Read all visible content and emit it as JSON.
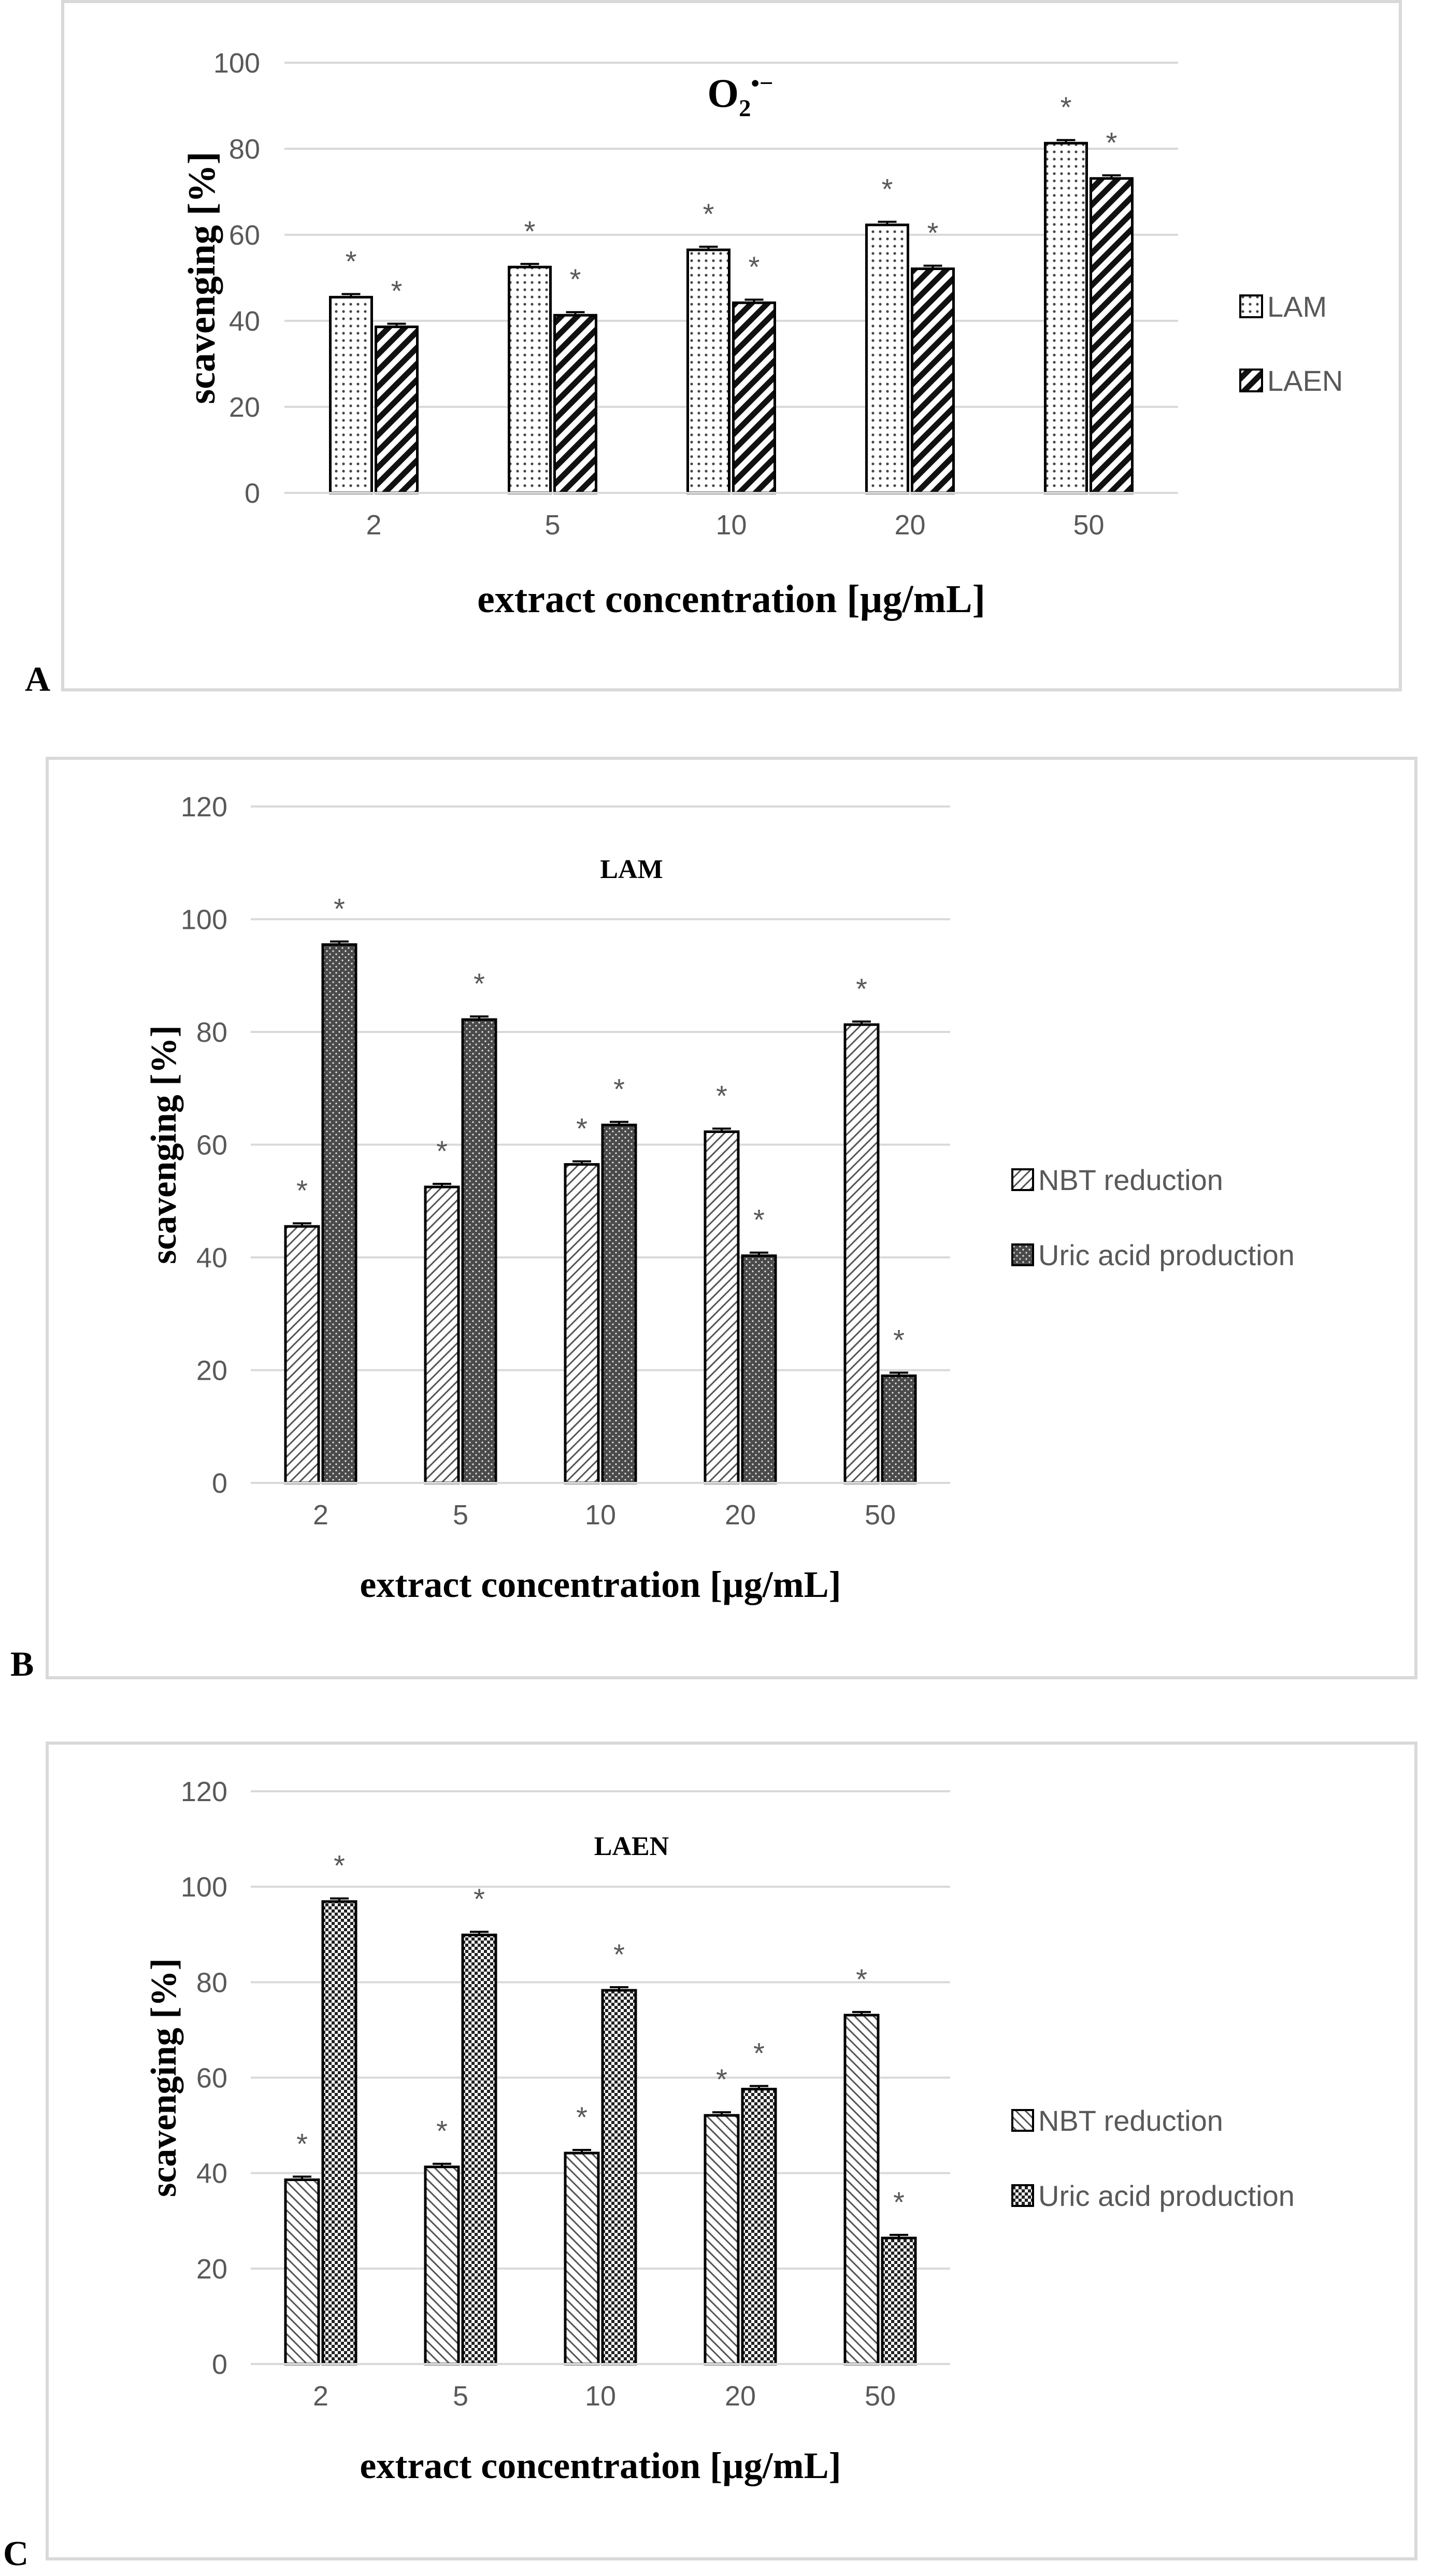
{
  "panels": [
    {
      "letter": "A"
    },
    {
      "letter": "B"
    },
    {
      "letter": "C"
    }
  ],
  "significance_marker": "*",
  "chart_data": [
    {
      "type": "bar",
      "title": "O",
      "title_subscript": "2",
      "title_superscript": "•−",
      "categories": [
        "2",
        "5",
        "10",
        "20",
        "50"
      ],
      "series": [
        {
          "name": "LAM",
          "values": [
            45.5,
            52.5,
            56.5,
            62.3,
            81.3
          ]
        },
        {
          "name": "LAEN",
          "values": [
            38.6,
            41.3,
            44.2,
            52.1,
            73.1
          ]
        }
      ],
      "xlabel": "extract concentration [µg/mL]",
      "ylabel": "scavenging [%]",
      "ylim": [
        0,
        100
      ],
      "yticks": [
        "0",
        "20",
        "40",
        "60",
        "80",
        "100"
      ],
      "grid": true,
      "legend": "right"
    },
    {
      "type": "bar",
      "title": "LAM",
      "categories": [
        "2",
        "5",
        "10",
        "20",
        "50"
      ],
      "series": [
        {
          "name": "NBT reduction",
          "values": [
            45.5,
            52.5,
            56.5,
            62.3,
            81.3
          ]
        },
        {
          "name": "Uric acid production",
          "values": [
            95.5,
            82.2,
            63.5,
            40.3,
            19.0
          ]
        }
      ],
      "xlabel": "extract concentration [µg/mL]",
      "ylabel": "scavenging [%]",
      "ylim": [
        0,
        120
      ],
      "yticks": [
        "0",
        "20",
        "40",
        "60",
        "80",
        "100",
        "120"
      ],
      "grid": true,
      "legend": "right"
    },
    {
      "type": "bar",
      "title": "LAEN",
      "categories": [
        "2",
        "5",
        "10",
        "20",
        "50"
      ],
      "series": [
        {
          "name": "NBT reduction",
          "values": [
            38.6,
            41.3,
            44.2,
            52.1,
            73.1
          ]
        },
        {
          "name": "Uric acid production",
          "values": [
            96.9,
            89.9,
            78.3,
            57.6,
            26.4
          ]
        }
      ],
      "xlabel": "extract concentration [µg/mL]",
      "ylabel": "scavenging [%]",
      "ylim": [
        0,
        120
      ],
      "yticks": [
        "0",
        "20",
        "40",
        "60",
        "80",
        "100",
        "120"
      ],
      "grid": true,
      "legend": "right"
    }
  ]
}
